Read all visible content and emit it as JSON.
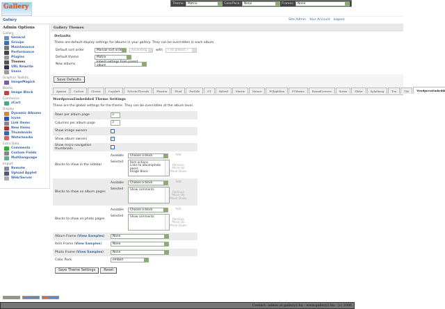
{
  "topbar": {
    "theme_label": "Theme:",
    "theme_value": "Matrix",
    "colorpack_label": "ColorPack:",
    "colorpack_value": "None",
    "frames_label": "Frames:",
    "frames_value": "None"
  },
  "logo_text": "Gallery",
  "breadcrumb": "Gallery",
  "header_links": [
    "Site Admin",
    "Your Account",
    "Logout"
  ],
  "sidebar": {
    "title": "Admin Options",
    "groups": [
      {
        "name": "Gallery",
        "items": [
          {
            "label": "General",
            "color": "#6a8fbf"
          },
          {
            "label": "Groups",
            "color": "#3a6fb0"
          },
          {
            "label": "Maintenance",
            "color": "#777"
          },
          {
            "label": "Performance",
            "color": "#444"
          },
          {
            "label": "Plugins",
            "color": "#999"
          },
          {
            "label": "Themes",
            "color": "#555",
            "current": true
          },
          {
            "label": "URL Rewrite",
            "color": "#335"
          },
          {
            "label": "Users",
            "color": "#999"
          }
        ]
      },
      {
        "name": "Graphics Toolkits",
        "items": [
          {
            "label": "ImageMagick",
            "color": "#7a5fa0"
          }
        ]
      },
      {
        "name": "Blocks",
        "items": [
          {
            "label": "Image Block",
            "color": "#b44"
          }
        ]
      },
      {
        "name": "Commerce",
        "items": [
          {
            "label": "zCart",
            "color": "#4a8"
          }
        ]
      },
      {
        "name": "Display",
        "items": [
          {
            "label": "Dynamic Albums",
            "color": "#c84"
          },
          {
            "label": "Icons",
            "color": "#35a"
          },
          {
            "label": "Link Items",
            "color": "#888"
          },
          {
            "label": "New Items",
            "color": "#a33"
          },
          {
            "label": "Thumbnails",
            "color": "#36a"
          },
          {
            "label": "Watermarks",
            "color": "#c66"
          }
        ]
      },
      {
        "name": "Extra Data",
        "items": [
          {
            "label": "Comments",
            "color": "#3a3"
          },
          {
            "label": "Custom Fields",
            "color": "#888"
          },
          {
            "label": "Multilanguage",
            "color": "#6a9"
          }
        ]
      },
      {
        "name": "Import",
        "items": [
          {
            "label": "Remote",
            "color": "#889"
          },
          {
            "label": "Upload Applet",
            "color": "#557"
          },
          {
            "label": "Web/Server",
            "color": "#aaa"
          }
        ]
      }
    ]
  },
  "main": {
    "title": "Gallery Themes",
    "defaults": {
      "heading": "Defaults",
      "description": "These are default display settings for albums in your gallery. They can be overridden in each album.",
      "sort_label": "Default sort order",
      "sort_value": "Manual sort order",
      "sort_dir": "Ascending",
      "with_label": "with",
      "presort": "« no presort »",
      "theme_label": "Default theme",
      "theme_value": "Matrix",
      "new_albums_label": "New albums",
      "new_albums_value": "Inherit settings from parent album",
      "save_button": "Save Defaults"
    },
    "tabs": [
      "Ajaxian",
      "Carbon",
      "Classic",
      "Copyleft",
      "EclecticThreads",
      "Floatrix",
      "Fluid",
      "ForSale",
      "G1",
      "Hybrid",
      "Matrix",
      "Nature",
      "PGlightBox",
      "PGtheme",
      "RoundCorners",
      "Siriux",
      "Slider",
      "Splatbang",
      "Tea",
      "Tile",
      "WordpressEmbedded"
    ],
    "active_tab": "WordpressEmbedded",
    "settings": {
      "heading": "WordpressEmbedded Theme Settings",
      "description": "These are the global settings for the theme. They can be overridden at the album level.",
      "rows_label": "Rows per album page",
      "rows_value": "3",
      "cols_label": "Columns per album page",
      "cols_value": "3",
      "image_owners_label": "Show image owners",
      "image_owners": false,
      "album_owners_label": "Show album owners",
      "album_owners": true,
      "micro_label": "Show micro navigation thumbnails",
      "micro": false,
      "available_label": "Available",
      "selected_label": "Selected",
      "choose_block": "Choose a block",
      "add": "Add",
      "remove": "Remove",
      "move_up": "Move Up",
      "move_down": "Move Down",
      "sidebar_blocks_label": "Blocks to show in the sidebar",
      "sidebar_selected": [
        "Item actions",
        "Links to album/photo peers",
        "Image Block"
      ],
      "album_blocks_label": "Blocks to show on album pages",
      "album_selected": [
        "Show comments"
      ],
      "photo_blocks_label": "Blocks to show on photo pages",
      "photo_selected": [
        "Show comments"
      ],
      "view_samples": "View Samples",
      "album_frame_label": "Album Frame",
      "album_frame": "None",
      "item_frame_label": "Item Frame",
      "item_frame": "None",
      "photo_frame_label": "Photo Frame",
      "photo_frame": "None",
      "color_pack_label": "Color Pack",
      "color_pack": "embed",
      "save_button": "Save Theme Settings",
      "reset_button": "Reset"
    }
  },
  "footer": "Contact: admin at gallery2.hu - www.gallery2.hu - (c) 2006"
}
